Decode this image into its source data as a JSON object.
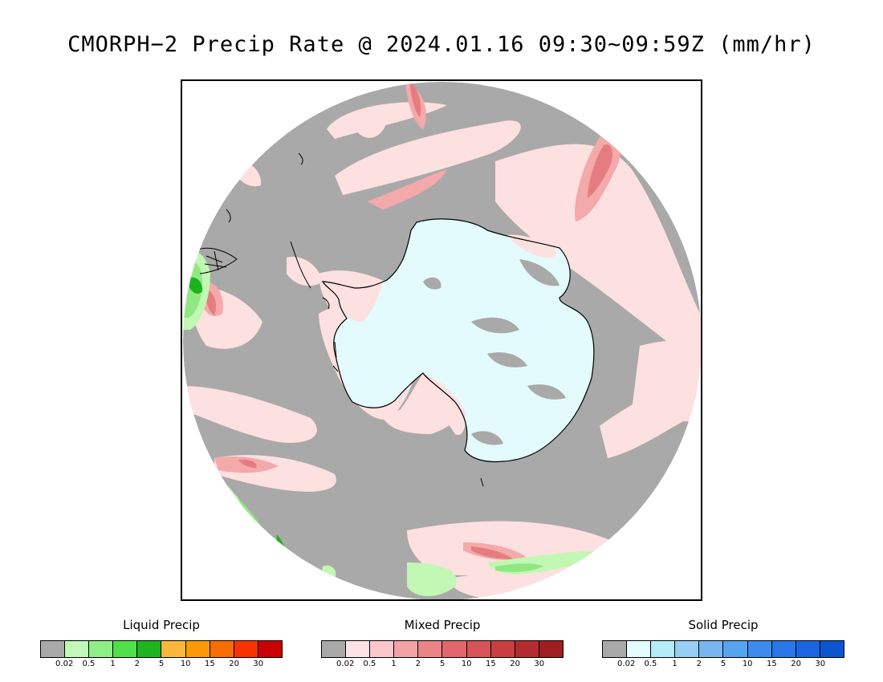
{
  "title": "CMORPH−2 Precip Rate @ 2024.01.16 09:30~09:59Z (mm/hr)",
  "map": {
    "projection": "south-polar-stereographic",
    "colors": {
      "no_precip": "#a9a9a9",
      "antarctica_ice": "#e3fbfd",
      "mixed_light": "#fde0e0",
      "mixed_mid": "#f4a9aa",
      "mixed_strong": "#e57d80",
      "liquid_light": "#c2f7b4",
      "liquid_mid": "#8fe882",
      "liquid_strong": "#1eb31e",
      "coastline": "#000000"
    }
  },
  "legends": [
    {
      "id": "liquid",
      "title": "Liquid Precip",
      "colors": [
        "#a8a8a8",
        "#c2f8b8",
        "#8fee86",
        "#50e04a",
        "#1eb41e",
        "#fbb73a",
        "#fb9a06",
        "#f96c02",
        "#f83300",
        "#cb0100"
      ],
      "ticks": [
        "0.02",
        "0.5",
        "1",
        "2",
        "5",
        "10",
        "15",
        "20",
        "30"
      ]
    },
    {
      "id": "mixed",
      "title": "Mixed Precip",
      "colors": [
        "#a8a8a8",
        "#fde3e6",
        "#fbc6cc",
        "#f3a2a6",
        "#eb8387",
        "#e1676c",
        "#d65458",
        "#c93e42",
        "#b42c2f",
        "#a01d20"
      ],
      "ticks": [
        "0.02",
        "0.5",
        "1",
        "2",
        "5",
        "10",
        "15",
        "20",
        "30"
      ]
    },
    {
      "id": "solid",
      "title": "Solid Precip",
      "colors": [
        "#a8a8a8",
        "#e2fcff",
        "#b4ecf8",
        "#96cef4",
        "#78b6f1",
        "#56a3ef",
        "#3c8cee",
        "#2a76e8",
        "#1a66e0",
        "#0b55cf"
      ],
      "ticks": [
        "0.02",
        "0.5",
        "1",
        "2",
        "5",
        "10",
        "15",
        "20",
        "30"
      ]
    }
  ]
}
